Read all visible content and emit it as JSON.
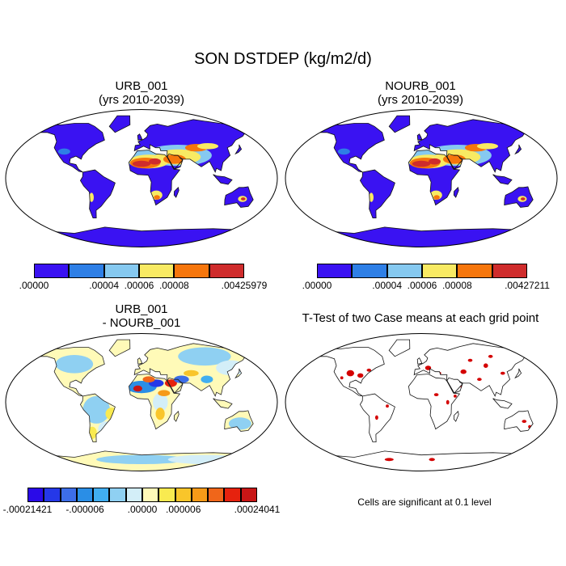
{
  "title": "SON DSTDEP (kg/m2/d)",
  "panels": [
    {
      "id": "urb",
      "title_line1": "URB_001",
      "title_line2": "(yrs 2010-2039)"
    },
    {
      "id": "nourb",
      "title_line1": "NOURB_001",
      "title_line2": "(yrs 2010-2039)"
    },
    {
      "id": "diff",
      "title_line1": "URB_001",
      "title_line2": "- NOURB_001"
    },
    {
      "id": "ttest",
      "title_line1": "T-Test of two Case means at each grid point"
    }
  ],
  "colorbars": {
    "urb": {
      "colors": [
        "#3a12f2",
        "#2e7fe6",
        "#86c9f0",
        "#f8ea63",
        "#f6760c",
        "#cf2c2c"
      ],
      "labels": [
        ".00000",
        ".00004",
        ".00006",
        ".00008",
        ".00425979"
      ]
    },
    "nourb": {
      "colors": [
        "#3a12f2",
        "#2e7fe6",
        "#86c9f0",
        "#f8ea63",
        "#f6760c",
        "#cf2c2c"
      ],
      "labels": [
        ".00000",
        ".00004",
        ".00006",
        ".00008",
        ".00427211"
      ]
    },
    "diff": {
      "colors": [
        "#2a0ae8",
        "#2538e8",
        "#3d6ee8",
        "#2a8ee6",
        "#41aef0",
        "#8fd0f2",
        "#d3eef8",
        "#fffab8",
        "#f9ea50",
        "#f9c52a",
        "#f69a18",
        "#f0661a",
        "#e6220e",
        "#c81616"
      ],
      "labels": [
        "-.00021421",
        "-.000006",
        ".00000",
        ".000006",
        ".00024041"
      ]
    }
  },
  "significance_note": "Cells are significant at 0.1 level"
}
